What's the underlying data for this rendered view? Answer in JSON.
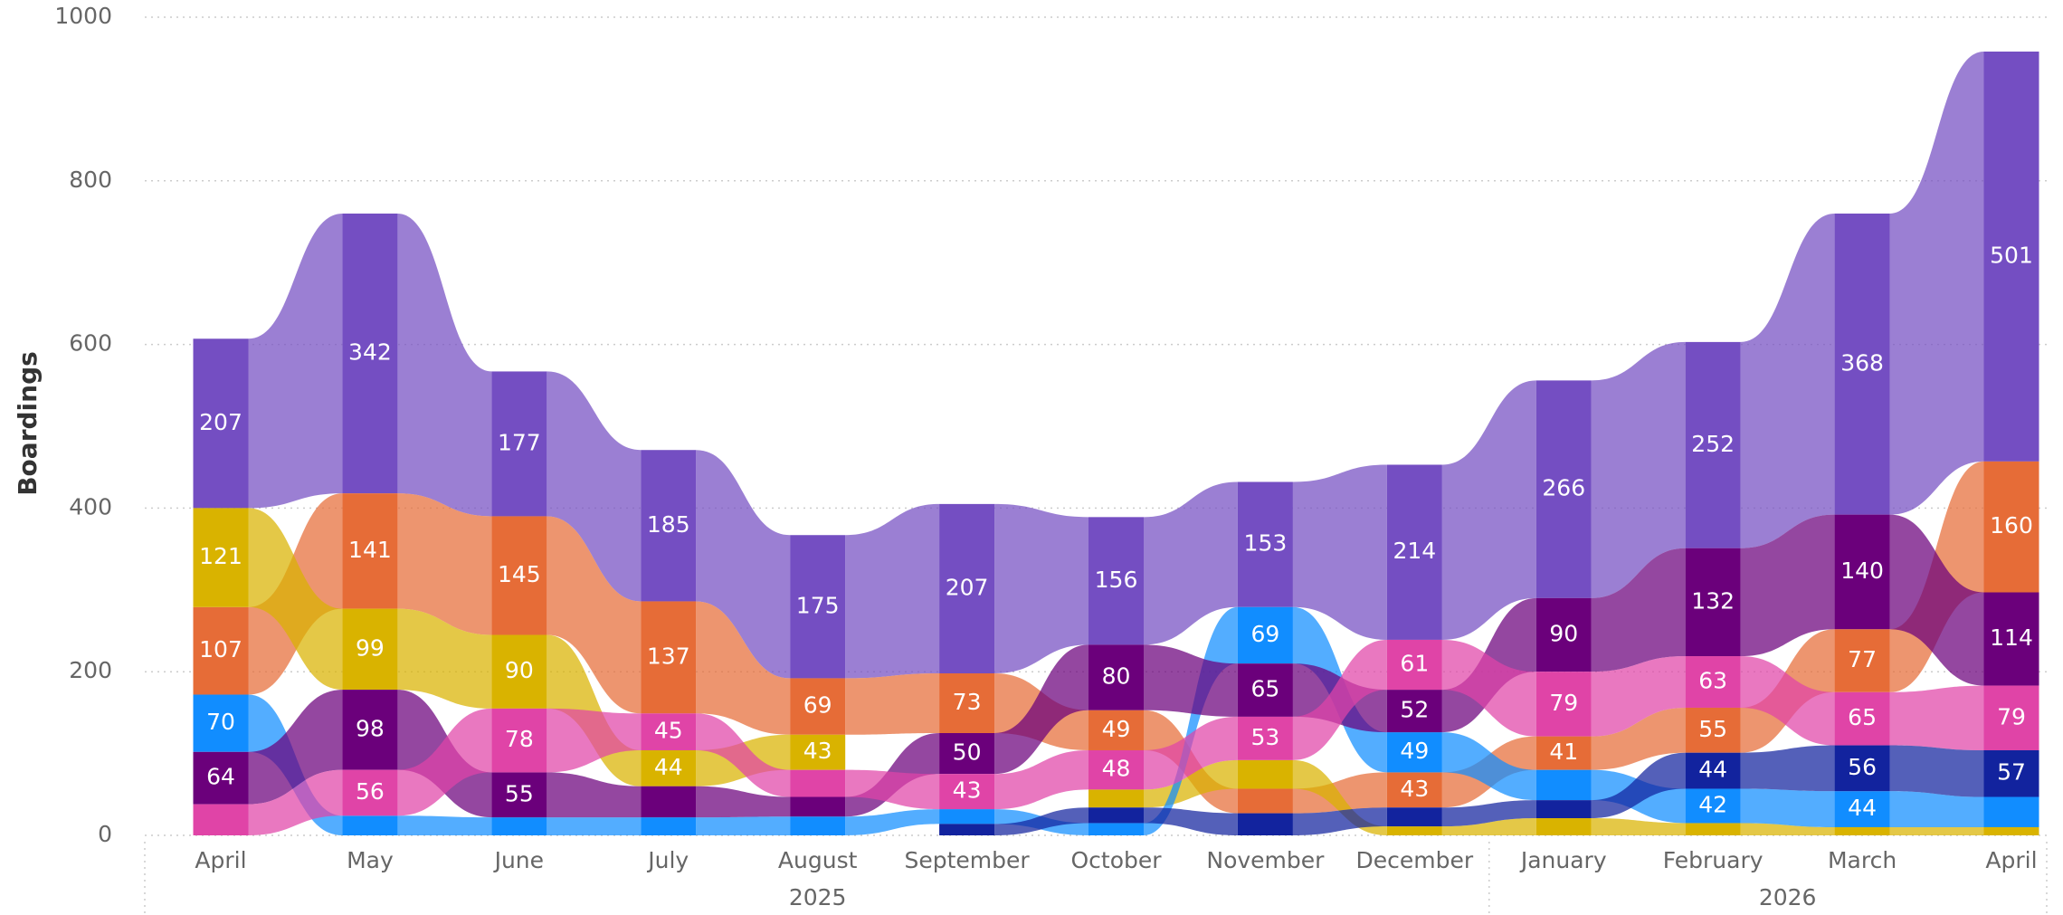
{
  "chart_data": {
    "type": "ribbon",
    "y_label": "Boardings",
    "categories": [
      "April",
      "May",
      "June",
      "July",
      "August",
      "September",
      "October",
      "November",
      "December",
      "January",
      "February",
      "March",
      "April"
    ],
    "category_years": [
      "2025",
      "2025",
      "2025",
      "2025",
      "2025",
      "2025",
      "2025",
      "2025",
      "2025",
      "2026",
      "2026",
      "2026",
      "2026"
    ],
    "ylim": [
      0,
      1000
    ],
    "yticks": [
      0,
      200,
      400,
      600,
      800,
      1000
    ],
    "grid": true,
    "series": [
      {
        "color": "#744EC2",
        "values": [
          207,
          342,
          177,
          185,
          175,
          207,
          156,
          153,
          214,
          266,
          252,
          368,
          501
        ]
      },
      {
        "color": "#E66C37",
        "values": [
          107,
          141,
          145,
          137,
          69,
          73,
          49,
          30,
          43,
          41,
          55,
          77,
          160
        ]
      },
      {
        "color": "#D9B300",
        "values": [
          121,
          99,
          90,
          44,
          43,
          null,
          22,
          35,
          11,
          21,
          15,
          10,
          10
        ]
      },
      {
        "color": "#118DFF",
        "values": [
          70,
          24,
          22,
          22,
          23,
          18,
          15,
          69,
          49,
          37,
          42,
          44,
          37
        ]
      },
      {
        "color": "#6B007B",
        "values": [
          64,
          98,
          55,
          38,
          24,
          50,
          80,
          65,
          52,
          90,
          132,
          140,
          114
        ]
      },
      {
        "color": "#E044A7",
        "values": [
          38,
          56,
          78,
          45,
          33,
          43,
          48,
          53,
          61,
          79,
          63,
          65,
          79
        ]
      },
      {
        "color": "#12239E",
        "values": [
          null,
          null,
          null,
          null,
          null,
          14,
          19,
          27,
          23,
          22,
          44,
          56,
          57
        ]
      }
    ]
  }
}
